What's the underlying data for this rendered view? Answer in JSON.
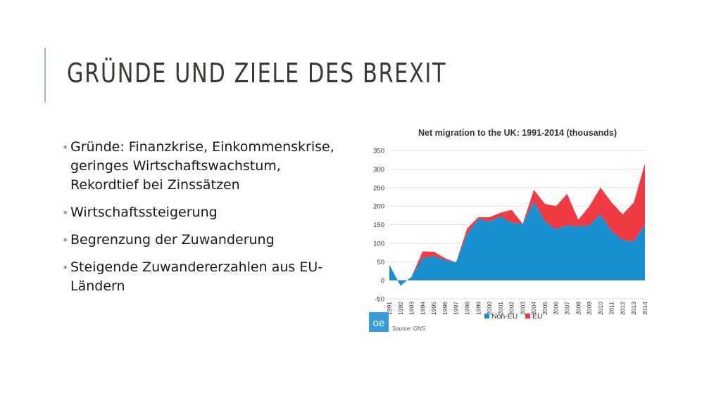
{
  "slide": {
    "title": "GRÜNDE UND ZIELE DES BREXIT",
    "bullets": [
      "Gründe: Finanzkrise, Einkommenskrise, geringes Wirtschaftswachstum, Rekordtief bei Zinssätzen",
      "Wirtschaftssteigerung",
      "Begrenzung der Zuwanderung",
      "Steigende Zuwandererzahlen aus EU-Ländern"
    ]
  },
  "logo": {
    "text": "oe"
  },
  "source": "Source: ONS",
  "colors": {
    "non_eu": "#1a8fd0",
    "eu": "#ef3b43",
    "grid": "#d8d8d8",
    "logo_bg": "#3a9bd9"
  },
  "chart_data": {
    "type": "area",
    "title": "Net migration to the UK: 1991-2014 (thousands)",
    "xlabel": "",
    "ylabel": "",
    "stacked": true,
    "x": [
      "1991",
      "1992",
      "1993",
      "1994",
      "1995",
      "1996",
      "1997",
      "1998",
      "1999",
      "2000",
      "2001",
      "2002",
      "2003",
      "2004",
      "2005",
      "2006",
      "2007",
      "2008",
      "2009",
      "2010",
      "2011",
      "2012",
      "2013",
      "2014"
    ],
    "series": [
      {
        "name": "Non-EU",
        "values": [
          42,
          -15,
          10,
          60,
          65,
          55,
          48,
          125,
          165,
          158,
          172,
          155,
          152,
          212,
          158,
          138,
          148,
          145,
          148,
          178,
          132,
          108,
          105,
          150
        ]
      },
      {
        "name": "EU",
        "values": [
          0,
          0,
          0,
          18,
          12,
          5,
          0,
          15,
          5,
          12,
          10,
          35,
          0,
          32,
          48,
          62,
          85,
          18,
          52,
          72,
          78,
          70,
          105,
          165
        ]
      }
    ],
    "ylim": [
      -50,
      350
    ],
    "yticks": [
      "-50",
      "0",
      "50",
      "100",
      "150",
      "200",
      "250",
      "300",
      "350"
    ],
    "grid": true,
    "legend": "bottom"
  }
}
